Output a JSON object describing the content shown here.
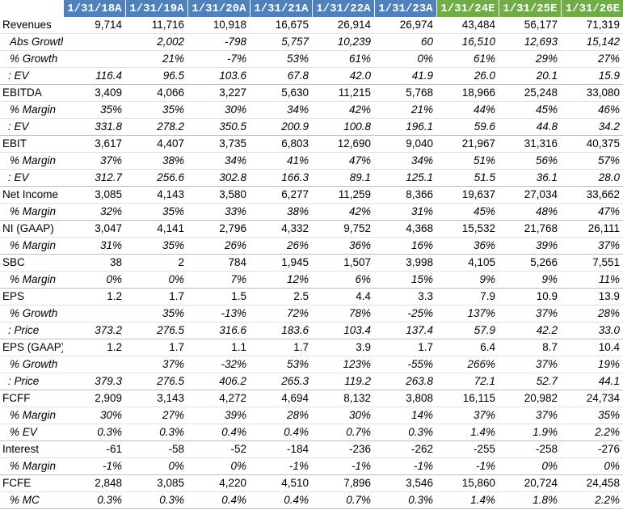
{
  "header": {
    "corner": "",
    "columns": [
      "1/31/18A",
      "1/31/19A",
      "1/31/20A",
      "1/31/21A",
      "1/31/22A",
      "1/31/23A",
      "1/31/24E",
      "1/31/25E",
      "1/31/26E"
    ],
    "actual_color": "#4f81bd",
    "estimate_color": "#70ad47"
  },
  "rows": [
    {
      "label": "Revenues",
      "style": "main",
      "values": [
        "9,714",
        "11,716",
        "10,918",
        "16,675",
        "26,914",
        "26,974",
        "43,484",
        "56,177",
        "71,319"
      ]
    },
    {
      "label": "Abs Growth",
      "style": "sub",
      "values": [
        "",
        "2,002",
        "-798",
        "5,757",
        "10,239",
        "60",
        "16,510",
        "12,693",
        "15,142"
      ]
    },
    {
      "label": "% Growth",
      "style": "sub",
      "values": [
        "",
        "21%",
        "-7%",
        "53%",
        "61%",
        "0%",
        "61%",
        "29%",
        "27%"
      ]
    },
    {
      "label": ": EV",
      "style": "sub",
      "values": [
        "116.4",
        "96.5",
        "103.6",
        "67.8",
        "42.0",
        "41.9",
        "26.0",
        "20.1",
        "15.9"
      ]
    },
    {
      "label": "EBITDA",
      "style": "main",
      "values": [
        "3,409",
        "4,066",
        "3,227",
        "5,630",
        "11,215",
        "5,768",
        "18,966",
        "25,248",
        "33,080"
      ]
    },
    {
      "label": "% Margin",
      "style": "sub",
      "values": [
        "35%",
        "35%",
        "30%",
        "34%",
        "42%",
        "21%",
        "44%",
        "45%",
        "46%"
      ]
    },
    {
      "label": ": EV",
      "style": "sub",
      "values": [
        "331.8",
        "278.2",
        "350.5",
        "200.9",
        "100.8",
        "196.1",
        "59.6",
        "44.8",
        "34.2"
      ]
    },
    {
      "label": "EBIT",
      "style": "main",
      "values": [
        "3,617",
        "4,407",
        "3,735",
        "6,803",
        "12,690",
        "9,040",
        "21,967",
        "31,316",
        "40,375"
      ]
    },
    {
      "label": "% Margin",
      "style": "sub",
      "values": [
        "37%",
        "38%",
        "34%",
        "41%",
        "47%",
        "34%",
        "51%",
        "56%",
        "57%"
      ]
    },
    {
      "label": ": EV",
      "style": "sub",
      "values": [
        "312.7",
        "256.6",
        "302.8",
        "166.3",
        "89.1",
        "125.1",
        "51.5",
        "36.1",
        "28.0"
      ]
    },
    {
      "label": "Net Income",
      "style": "main",
      "values": [
        "3,085",
        "4,143",
        "3,580",
        "6,277",
        "11,259",
        "8,366",
        "19,637",
        "27,034",
        "33,662"
      ]
    },
    {
      "label": "% Margin",
      "style": "sub",
      "values": [
        "32%",
        "35%",
        "33%",
        "38%",
        "42%",
        "31%",
        "45%",
        "48%",
        "47%"
      ]
    },
    {
      "label": "NI (GAAP)",
      "style": "main",
      "values": [
        "3,047",
        "4,141",
        "2,796",
        "4,332",
        "9,752",
        "4,368",
        "15,532",
        "21,768",
        "26,111"
      ]
    },
    {
      "label": "% Margin",
      "style": "sub",
      "values": [
        "31%",
        "35%",
        "26%",
        "26%",
        "36%",
        "16%",
        "36%",
        "39%",
        "37%"
      ]
    },
    {
      "label": "SBC",
      "style": "main",
      "values": [
        "38",
        "2",
        "784",
        "1,945",
        "1,507",
        "3,998",
        "4,105",
        "5,266",
        "7,551"
      ]
    },
    {
      "label": "% Margin",
      "style": "sub",
      "values": [
        "0%",
        "0%",
        "7%",
        "12%",
        "6%",
        "15%",
        "9%",
        "9%",
        "11%"
      ]
    },
    {
      "label": "EPS",
      "style": "main",
      "values": [
        "1.2",
        "1.7",
        "1.5",
        "2.5",
        "4.4",
        "3.3",
        "7.9",
        "10.9",
        "13.9"
      ]
    },
    {
      "label": "% Growth",
      "style": "sub",
      "values": [
        "",
        "35%",
        "-13%",
        "72%",
        "78%",
        "-25%",
        "137%",
        "37%",
        "28%"
      ]
    },
    {
      "label": ": Price",
      "style": "sub",
      "values": [
        "373.2",
        "276.5",
        "316.6",
        "183.6",
        "103.4",
        "137.4",
        "57.9",
        "42.2",
        "33.0"
      ]
    },
    {
      "label": "EPS (GAAP)",
      "style": "main",
      "values": [
        "1.2",
        "1.7",
        "1.1",
        "1.7",
        "3.9",
        "1.7",
        "6.4",
        "8.7",
        "10.4"
      ]
    },
    {
      "label": "% Growth",
      "style": "sub",
      "values": [
        "",
        "37%",
        "-32%",
        "53%",
        "123%",
        "-55%",
        "266%",
        "37%",
        "19%"
      ]
    },
    {
      "label": ": Price",
      "style": "sub",
      "values": [
        "379.3",
        "276.5",
        "406.2",
        "265.3",
        "119.2",
        "263.8",
        "72.1",
        "52.7",
        "44.1"
      ]
    },
    {
      "label": "FCFF",
      "style": "main",
      "values": [
        "2,909",
        "3,143",
        "4,272",
        "4,694",
        "8,132",
        "3,808",
        "16,115",
        "20,982",
        "24,734"
      ]
    },
    {
      "label": "% Margin",
      "style": "sub",
      "values": [
        "30%",
        "27%",
        "39%",
        "28%",
        "30%",
        "14%",
        "37%",
        "37%",
        "35%"
      ]
    },
    {
      "label": "% EV",
      "style": "sub",
      "values": [
        "0.3%",
        "0.3%",
        "0.4%",
        "0.4%",
        "0.7%",
        "0.3%",
        "1.4%",
        "1.9%",
        "2.2%"
      ]
    },
    {
      "label": "Interest",
      "style": "main",
      "values": [
        "-61",
        "-58",
        "-52",
        "-184",
        "-236",
        "-262",
        "-255",
        "-258",
        "-276"
      ]
    },
    {
      "label": "% Margin",
      "style": "sub",
      "values": [
        "-1%",
        "0%",
        "0%",
        "-1%",
        "-1%",
        "-1%",
        "-1%",
        "0%",
        "0%"
      ]
    },
    {
      "label": "FCFE",
      "style": "main",
      "values": [
        "2,848",
        "3,085",
        "4,220",
        "4,510",
        "7,896",
        "3,546",
        "15,860",
        "20,724",
        "24,458"
      ]
    },
    {
      "label": "% MC",
      "style": "sub",
      "values": [
        "0.3%",
        "0.3%",
        "0.4%",
        "0.4%",
        "0.7%",
        "0.3%",
        "1.4%",
        "1.8%",
        "2.2%"
      ]
    }
  ]
}
